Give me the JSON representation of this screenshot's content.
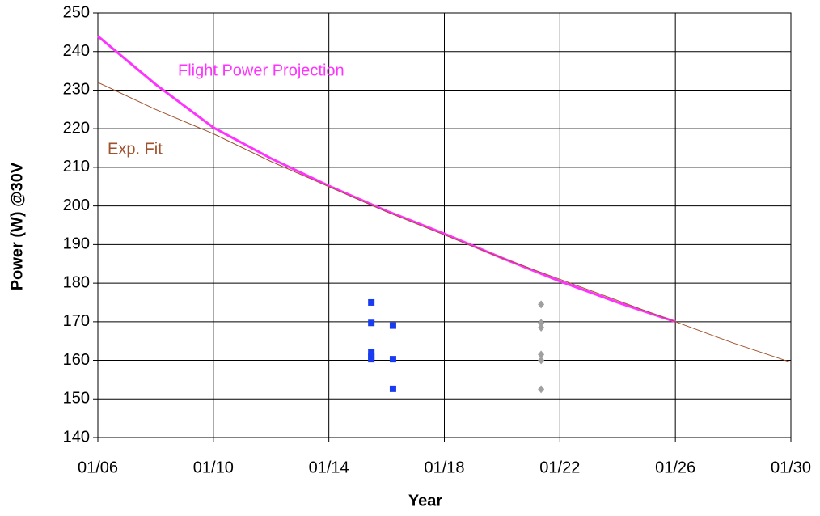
{
  "chart_data": {
    "type": "line",
    "xlabel": "Year",
    "ylabel": "Power (W) @30V",
    "xlim": [
      6,
      30
    ],
    "xticks": [
      {
        "value": 6,
        "label": "01/06"
      },
      {
        "value": 10,
        "label": "01/10"
      },
      {
        "value": 14,
        "label": "01/14"
      },
      {
        "value": 18,
        "label": "01/18"
      },
      {
        "value": 22,
        "label": "01/22"
      },
      {
        "value": 26,
        "label": "01/26"
      },
      {
        "value": 30,
        "label": "01/30"
      }
    ],
    "ylim": [
      140,
      250
    ],
    "yticks": [
      140,
      150,
      160,
      170,
      180,
      190,
      200,
      210,
      220,
      230,
      240,
      250
    ],
    "grid": true,
    "series": [
      {
        "name": "Flight Power Projection",
        "type": "line",
        "color": "#ff33ff",
        "width": 3,
        "x": [
          6,
          8,
          10,
          12,
          14,
          16,
          18,
          20,
          22,
          24,
          26
        ],
        "values": [
          244,
          231.5,
          220.3,
          212.3,
          205.2,
          198.7,
          192.8,
          186.5,
          180.5,
          175,
          170
        ]
      },
      {
        "name": "Exp. Fit",
        "type": "line",
        "color": "#a0522d",
        "width": 1,
        "x": [
          6,
          8,
          10,
          12,
          14,
          16,
          18,
          20,
          22,
          24,
          26,
          28,
          30
        ],
        "values": [
          232,
          225,
          218.7,
          211.5,
          205,
          198.5,
          192.5,
          186.5,
          181,
          175.5,
          170,
          164.5,
          159.5
        ]
      },
      {
        "type": "scatter",
        "marker": "square",
        "color": "#1a3cf0",
        "x": [
          15.47,
          15.47,
          15.47,
          15.47,
          15.47,
          16.22,
          16.22,
          16.22
        ],
        "values": [
          175,
          169.7,
          162,
          161,
          160.3,
          169,
          160.3,
          152.6
        ]
      },
      {
        "type": "scatter",
        "marker": "diamond",
        "color": "#a0a0a0",
        "x": [
          21.35,
          21.35,
          21.35,
          21.35,
          21.35,
          21.35
        ],
        "values": [
          174.5,
          169.7,
          168.5,
          161.5,
          160,
          152.5
        ]
      }
    ]
  }
}
